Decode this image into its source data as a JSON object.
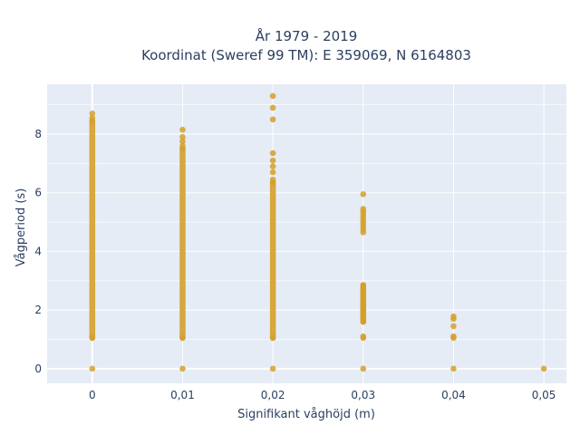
{
  "chart_data": {
    "type": "scatter",
    "title_line1": "År 1979 - 2019",
    "title_line2": "Koordinat (Sweref 99 TM): E 359069, N 6164803",
    "xlabel": "Signifikant våghöjd (m)",
    "ylabel": "Vågperiod (s)",
    "xlim": [
      -0.005,
      0.0525
    ],
    "ylim": [
      -0.5,
      9.7
    ],
    "x_ticks": [
      0,
      0.01,
      0.02,
      0.03,
      0.04,
      0.05
    ],
    "x_tick_labels": [
      "0",
      "0,01",
      "0,02",
      "0,03",
      "0,04",
      "0,05"
    ],
    "y_ticks": [
      0,
      2,
      4,
      6,
      8
    ],
    "y_tick_labels": [
      "0",
      "2",
      "4",
      "6",
      "8"
    ],
    "grid": true,
    "marker_color": "#D4A02A",
    "background_color": "#E5ECF6",
    "series": [
      {
        "x": 0,
        "dense_range": [
          1.05,
          8.45
        ],
        "values": [
          0,
          1.05,
          8.45,
          8.55,
          8.7
        ]
      },
      {
        "x": 0.01,
        "dense_range": [
          1.05,
          7.5
        ],
        "values": [
          0,
          1.05,
          7.5,
          7.6,
          7.75,
          7.9,
          8.15
        ]
      },
      {
        "x": 0.02,
        "dense_range": [
          1.05,
          6.35
        ],
        "values": [
          0,
          1.05,
          6.35,
          6.45,
          6.7,
          6.9,
          7.1,
          7.35,
          8.5,
          8.9,
          9.3
        ]
      },
      {
        "x": 0.03,
        "dense_range": [
          1.6,
          2.85
        ],
        "values": [
          0,
          1.05,
          1.1,
          1.6,
          1.65,
          1.7,
          1.8,
          1.9,
          2.0,
          2.1,
          2.2,
          2.3,
          2.4,
          2.5,
          2.6,
          2.7,
          2.8,
          2.85,
          4.65,
          4.75,
          4.85,
          4.95,
          5.05,
          5.15,
          5.25,
          5.35,
          5.45,
          5.95
        ]
      },
      {
        "x": 0.04,
        "dense_range": null,
        "values": [
          0,
          1.05,
          1.1,
          1.45,
          1.7,
          1.78
        ]
      },
      {
        "x": 0.05,
        "dense_range": null,
        "values": [
          0
        ]
      }
    ]
  }
}
